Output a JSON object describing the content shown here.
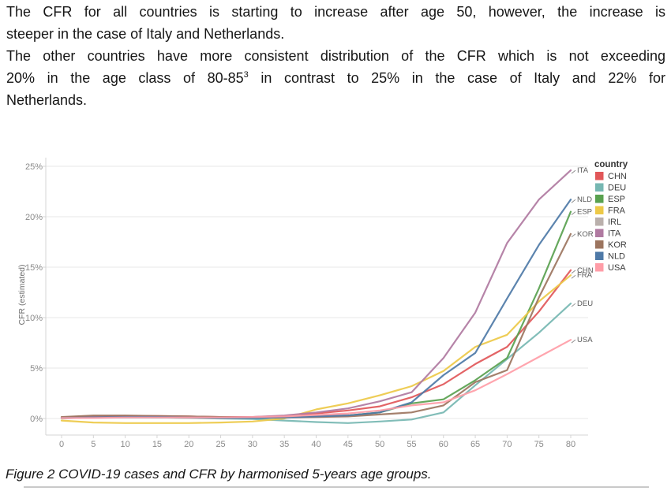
{
  "text": {
    "p1_line1": "The CFR for all countries is starting to increase after age 50, however, the increase is",
    "p1_line2": "steeper in the case of Italy and Netherlands.",
    "p2_line1": "The other countries have more consistent distribution of the CFR which is not exceeding",
    "p2_line2_pre": "20% in the age class of 80-85",
    "p2_line2_sup": "3",
    "p2_line2_post": " in contrast to 25% in the case of Italy and 22% for",
    "p2_line3": "Netherlands."
  },
  "caption": "Figure 2 COVID-19 cases and CFR by harmonised 5-years age groups.",
  "chart_data": {
    "type": "line",
    "title": "",
    "xlabel": "",
    "ylabel": "CFR (estimated)",
    "legend_title": "country",
    "legend_position": "right",
    "grid": "horizontal",
    "x": [
      0,
      5,
      10,
      15,
      20,
      25,
      30,
      35,
      40,
      45,
      50,
      55,
      60,
      65,
      70,
      75,
      80
    ],
    "x_tick_labels": [
      "0",
      "5",
      "10",
      "15",
      "20",
      "25",
      "30",
      "35",
      "40",
      "45",
      "50",
      "55",
      "60",
      "65",
      "70",
      "75",
      "80"
    ],
    "y_ticks": [
      0,
      5,
      10,
      15,
      20,
      25
    ],
    "y_tick_labels": [
      "0%",
      "5%",
      "10%",
      "15%",
      "20%",
      "25%"
    ],
    "ylim": [
      -1.5,
      26
    ],
    "unit": "percent CFR",
    "axis_text_color": "#8a8a8a",
    "grid_color": "#e7e7e7",
    "series": [
      {
        "name": "CHN",
        "color": "#e15759",
        "end_label": "CHN",
        "values": [
          0.1,
          0.2,
          0.25,
          0.25,
          0.2,
          0.15,
          0.15,
          0.25,
          0.5,
          0.8,
          1.2,
          2.1,
          3.4,
          5.4,
          7.1,
          10.6,
          14.7
        ]
      },
      {
        "name": "DEU",
        "color": "#76b7b2",
        "end_label": "DEU",
        "values": [
          0.05,
          0.1,
          0.1,
          0.1,
          0.05,
          0,
          -0.05,
          -0.2,
          -0.35,
          -0.45,
          -0.3,
          -0.1,
          0.6,
          3.3,
          5.9,
          8.5,
          11.4
        ]
      },
      {
        "name": "ESP",
        "color": "#59a14f",
        "end_label": "ESP",
        "values": [
          0.05,
          0.1,
          0.15,
          0.1,
          0.1,
          0.05,
          0.05,
          0.1,
          0.2,
          0.3,
          0.6,
          1.5,
          1.9,
          3.8,
          6.0,
          12.9,
          20.5
        ]
      },
      {
        "name": "FRA",
        "color": "#edc948",
        "end_label": "FRA",
        "values": [
          -0.2,
          -0.4,
          -0.45,
          -0.45,
          -0.45,
          -0.4,
          -0.3,
          0,
          0.9,
          1.5,
          2.3,
          3.2,
          4.7,
          7.1,
          8.3,
          11.6,
          14.2
        ]
      },
      {
        "name": "IRL",
        "color": "#bab0ac",
        "end_label": null,
        "values": [
          0,
          0.1,
          0.1,
          0.1,
          0.05,
          0.05,
          0.05,
          0.1,
          0.2,
          0.4,
          null,
          null,
          null,
          null,
          null,
          null,
          null
        ]
      },
      {
        "name": "ITA",
        "color": "#b07aa1",
        "end_label": "ITA",
        "values": [
          0.1,
          0.15,
          0.2,
          0.2,
          0.15,
          0.1,
          0.15,
          0.3,
          0.6,
          1.0,
          1.7,
          2.6,
          6.0,
          10.5,
          17.4,
          21.7,
          24.6
        ]
      },
      {
        "name": "KOR",
        "color": "#9c755f",
        "end_label": "KOR",
        "values": [
          0.15,
          0.3,
          0.3,
          0.25,
          0.2,
          0.15,
          0.1,
          0.1,
          0.15,
          0.2,
          0.4,
          0.6,
          1.3,
          3.6,
          4.8,
          12.0,
          18.3
        ]
      },
      {
        "name": "NLD",
        "color": "#4e79a7",
        "end_label": "NLD",
        "values": [
          0.05,
          0.1,
          0.15,
          0.15,
          0.1,
          0.05,
          0.05,
          0.1,
          0.2,
          0.3,
          0.6,
          1.6,
          4.3,
          6.5,
          11.9,
          17.2,
          21.7
        ]
      },
      {
        "name": "USA",
        "color": "#ff9da7",
        "end_label": "USA",
        "values": [
          0.05,
          0.05,
          0.1,
          0.1,
          0.1,
          0.1,
          0.15,
          0.2,
          0.35,
          0.5,
          0.8,
          1.3,
          1.6,
          2.8,
          4.4,
          6.1,
          7.8
        ]
      }
    ]
  }
}
